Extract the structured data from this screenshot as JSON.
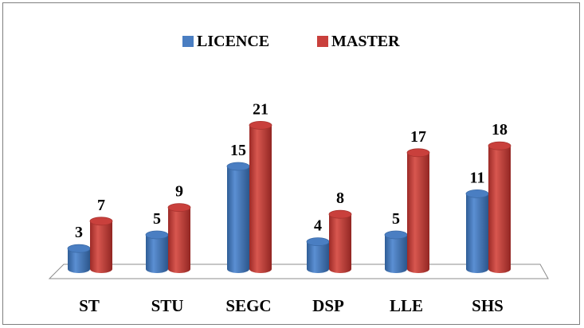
{
  "chart_data": {
    "type": "bar",
    "title": "",
    "xlabel": "",
    "ylabel": "",
    "ylim": [
      0,
      21
    ],
    "grid": false,
    "legend_position": "top",
    "style": "3d-cylinder",
    "categories": [
      "ST",
      "STU",
      "SEGC",
      "DSP",
      "LLE",
      "SHS"
    ],
    "series": [
      {
        "name": "LICENCE",
        "color": "#4a7ec2",
        "values": [
          3,
          5,
          15,
          4,
          5,
          11
        ]
      },
      {
        "name": "MASTER",
        "color": "#c9403c",
        "values": [
          7,
          9,
          21,
          8,
          17,
          18
        ]
      }
    ]
  }
}
